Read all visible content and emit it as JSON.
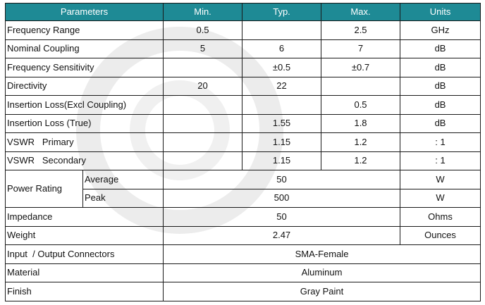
{
  "headers": {
    "parameters": "Parameters",
    "min": "Min.",
    "typ": "Typ.",
    "max": "Max.",
    "units": "Units"
  },
  "rows": [
    {
      "param": "Frequency Range",
      "min": "0.5",
      "typ": "",
      "max": "2.5",
      "units": "GHz"
    },
    {
      "param": "Nominal Coupling",
      "min": "5",
      "typ": "6",
      "max": "7",
      "units": "dB"
    },
    {
      "param": "Frequency Sensitivity",
      "min": "",
      "typ": "±0.5",
      "max": "±0.7",
      "units": "dB"
    },
    {
      "param": "Directivity",
      "min": "20",
      "typ": "22",
      "max": "",
      "units": "dB"
    },
    {
      "param": "Insertion Loss(Excl Coupling)",
      "min": "",
      "typ": "",
      "max": "0.5",
      "units": "dB"
    },
    {
      "param": "Insertion Loss (True)",
      "min": "",
      "typ": "1.55",
      "max": "1.8",
      "units": "dB"
    },
    {
      "param": "VSWR   Primary",
      "min": "",
      "typ": "1.15",
      "max": "1.2",
      "units": ": 1"
    },
    {
      "param": "VSWR   Secondary",
      "min": "",
      "typ": "1.15",
      "max": "1.2",
      "units": ": 1"
    }
  ],
  "power_rating": {
    "label": "Power Rating",
    "average": {
      "label": "Average",
      "value": "50",
      "units": "W"
    },
    "peak": {
      "label": "Peak",
      "value": "500",
      "units": "W"
    }
  },
  "impedance": {
    "param": "Impedance",
    "value": "50",
    "units": "Ohms"
  },
  "weight": {
    "param": "Weight",
    "value": "2.47",
    "units": "Ounces"
  },
  "connectors": {
    "param": "Input  / Output Connectors",
    "value": "SMA-Female"
  },
  "material": {
    "param": "Material",
    "value": "Aluminum"
  },
  "finish": {
    "param": "Finish",
    "value": "Gray Paint"
  }
}
